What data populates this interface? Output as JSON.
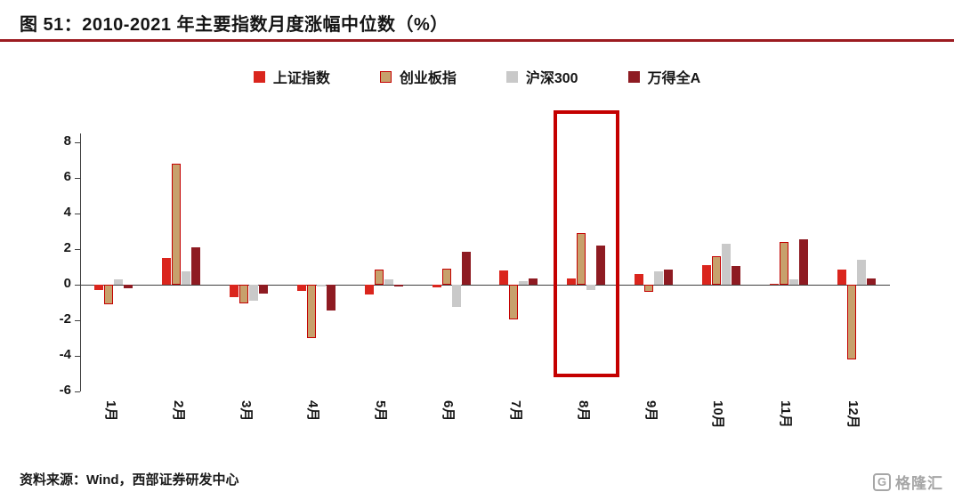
{
  "header": {
    "title": "图 51：2010-2021 年主要指数月度涨幅中位数（%）"
  },
  "chart_data": {
    "type": "bar",
    "title": "图 51：2010-2021 年主要指数月度涨幅中位数（%）",
    "xlabel": "",
    "ylabel": "",
    "categories": [
      "1月",
      "2月",
      "3月",
      "4月",
      "5月",
      "6月",
      "7月",
      "8月",
      "9月",
      "10月",
      "11月",
      "12月"
    ],
    "series": [
      {
        "name": "上证指数",
        "color": "#da251d",
        "values": [
          -0.3,
          1.5,
          -0.7,
          -0.35,
          -0.55,
          -0.15,
          0.8,
          0.35,
          0.6,
          1.1,
          0.05,
          0.85
        ]
      },
      {
        "name": "创业板指",
        "color": "#c7a16c",
        "border_color": "#c40000",
        "values": [
          -1.1,
          6.8,
          -1.05,
          -3.0,
          0.85,
          0.9,
          -1.95,
          2.9,
          -0.4,
          1.6,
          2.4,
          -4.2
        ]
      },
      {
        "name": "沪深300",
        "color": "#c9c9c9",
        "values": [
          0.3,
          0.75,
          -0.9,
          -0.1,
          0.3,
          -1.25,
          0.2,
          -0.3,
          0.75,
          2.3,
          0.3,
          1.4
        ]
      },
      {
        "name": "万得全A",
        "color": "#8e1b22",
        "values": [
          -0.2,
          2.1,
          -0.5,
          -1.45,
          -0.1,
          1.85,
          0.35,
          2.2,
          0.85,
          1.05,
          2.55,
          0.35
        ]
      }
    ],
    "ylim": [
      -6,
      8.5
    ],
    "yticks": [
      8,
      6,
      4,
      2,
      0,
      -2,
      -4,
      -6
    ],
    "grid": false,
    "legend_position": "top",
    "highlight": {
      "category": "8月",
      "color": "#c40000"
    }
  },
  "footer": {
    "source": "资料来源：Wind，西部证券研发中心"
  },
  "logo": {
    "icon": "G",
    "text": "格隆汇"
  }
}
